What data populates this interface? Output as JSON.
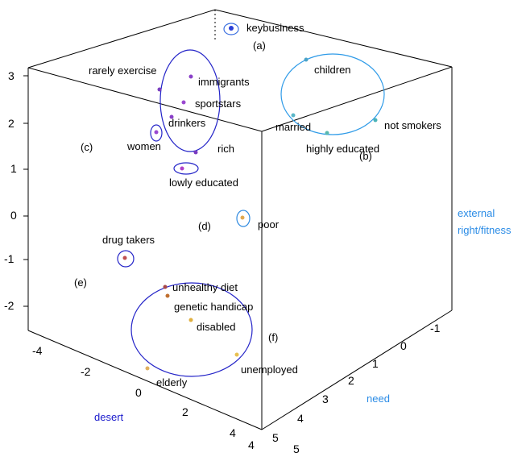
{
  "chart_data": {
    "type": "scatter",
    "dimensions": 3,
    "title": "",
    "axes": {
      "desert": {
        "label": "desert",
        "color": "#1a1acc",
        "ticks": [
          "-4",
          "-2",
          "0",
          "2",
          "4"
        ]
      },
      "need": {
        "label": "need",
        "color": "#2b8ce6",
        "ticks": [
          "-1",
          "0",
          "1",
          "2",
          "3",
          "4",
          "5"
        ]
      },
      "external": {
        "label_lines": [
          "external",
          "right/fitness"
        ],
        "color": "#2b8ce6",
        "ticks": [
          "3",
          "2",
          "1",
          "0",
          "-1",
          "-2"
        ]
      }
    },
    "clusters": [
      {
        "label": "(a)",
        "color": "#3a6fe0",
        "members": [
          "keybusiness"
        ]
      },
      {
        "label": "(b)",
        "color": "#2f9be8",
        "members": [
          "children",
          "married",
          "not smokers",
          "highly educated"
        ]
      },
      {
        "label": "(c)",
        "color": "#2424c8",
        "members": [
          "immigrants",
          "sportstars",
          "drinkers",
          "rich",
          "women",
          "lowly educated"
        ]
      },
      {
        "label": "(d)",
        "color": "#2f8ae0",
        "members": [
          "poor"
        ]
      },
      {
        "label": "(e)",
        "color": "#2424c8",
        "members": [
          "drug takers"
        ]
      },
      {
        "label": "(f)",
        "color": "#2424c8",
        "members": [
          "unhealthy diet",
          "genetic handicap",
          "disabled",
          "unemployed",
          "elderly"
        ]
      }
    ],
    "points": [
      {
        "label": "keybusiness",
        "color": "#2a3fd8"
      },
      {
        "label": "children",
        "color": "#4aa3c8"
      },
      {
        "label": "married",
        "color": "#5bb7c8"
      },
      {
        "label": "not smokers",
        "color": "#4ab3b8"
      },
      {
        "label": "highly educated",
        "color": "#58b8b0"
      },
      {
        "label": "rarely exercise",
        "color": "#7a3fc0"
      },
      {
        "label": "immigrants",
        "color": "#8a40c8"
      },
      {
        "label": "sportstars",
        "color": "#9a48d0"
      },
      {
        "label": "drinkers",
        "color": "#8a3ec8"
      },
      {
        "label": "rich",
        "color": "#7a3ac0"
      },
      {
        "label": "women",
        "color": "#9a48d0"
      },
      {
        "label": "lowly educated",
        "color": "#b040c8"
      },
      {
        "label": "poor",
        "color": "#e0a850"
      },
      {
        "label": "drug takers",
        "color": "#c05050"
      },
      {
        "label": "unhealthy diet",
        "color": "#a84848"
      },
      {
        "label": "genetic handicap",
        "color": "#c07030"
      },
      {
        "label": "disabled",
        "color": "#e0b040"
      },
      {
        "label": "unemployed",
        "color": "#e8c050"
      },
      {
        "label": "elderly",
        "color": "#e0b060"
      }
    ]
  }
}
